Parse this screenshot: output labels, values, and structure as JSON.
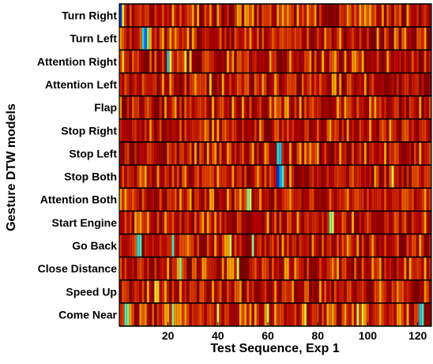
{
  "chart_data": {
    "type": "heatmap",
    "title": "",
    "xlabel": "Test Sequence, Exp 1",
    "ylabel": "Gesture DTW models",
    "xlim": [
      1,
      125
    ],
    "x_ticks": [
      20,
      40,
      60,
      80,
      100,
      120
    ],
    "grid": false,
    "legend": "none",
    "colormap": [
      "#0000b4",
      "#00a0ff",
      "#40e0c0",
      "#f0f040",
      "#f5a000",
      "#e04000",
      "#b40000",
      "#780000"
    ],
    "value_scale": "0 = low DTW distance (blue) … 1 = high DTW distance (dark red)",
    "rows": [
      {
        "label": "Turn Right",
        "low_columns": {
          "1": 0.05,
          "2": 0.45
        }
      },
      {
        "label": "Turn Left",
        "low_columns": {
          "10": 0.25,
          "11": 0.1,
          "12": 0.35
        }
      },
      {
        "label": "Attention Right",
        "low_columns": {
          "2": 0.5,
          "20": 0.2,
          "21": 0.45,
          "27": 0.45,
          "29": 0.5
        }
      },
      {
        "label": "Attention Left",
        "low_columns": {
          "37": 0.5
        }
      },
      {
        "label": "Flap",
        "low_columns": {}
      },
      {
        "label": "Stop Right",
        "low_columns": {}
      },
      {
        "label": "Stop Left",
        "low_columns": {
          "64": 0.25,
          "65": 0.2
        }
      },
      {
        "label": "Stop Both",
        "low_columns": {
          "64": 0.05,
          "65": 0.15,
          "66": 0.3,
          "110": 0.45
        }
      },
      {
        "label": "Attention Both",
        "low_columns": {
          "52": 0.35,
          "53": 0.4
        }
      },
      {
        "label": "Start Engine",
        "low_columns": {
          "85": 0.35,
          "86": 0.4
        }
      },
      {
        "label": "Go Back",
        "low_columns": {
          "8": 0.25,
          "9": 0.3,
          "22": 0.3,
          "45": 0.4,
          "54": 0.35
        }
      },
      {
        "label": "Close Distance",
        "low_columns": {
          "25": 0.35,
          "48": 0.4
        }
      },
      {
        "label": "Speed Up",
        "low_columns": {
          "15": 0.45,
          "16": 0.5
        }
      },
      {
        "label": "Come Near",
        "low_columns": {
          "3": 0.3,
          "4": 0.35,
          "22": 0.35,
          "40": 0.4,
          "60": 0.4,
          "75": 0.45,
          "96": 0.4,
          "98": 0.45,
          "121": 0.2,
          "122": 0.3
        }
      }
    ]
  }
}
